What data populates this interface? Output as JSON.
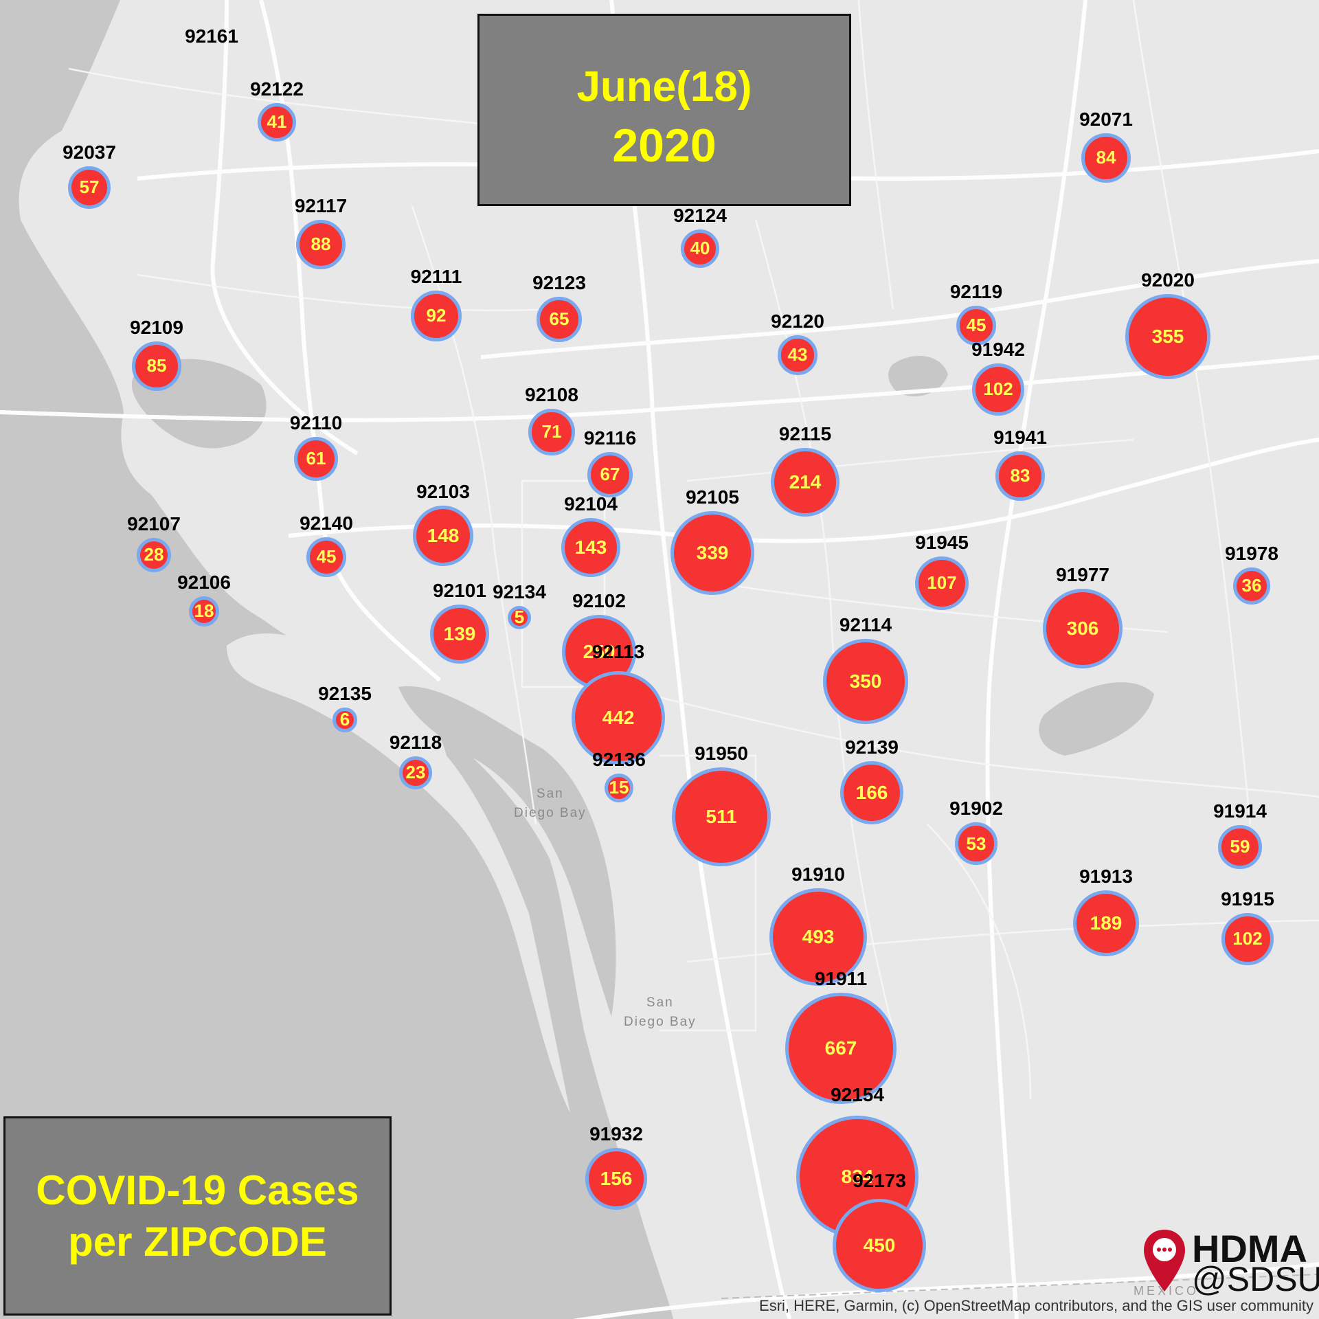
{
  "title": {
    "line1": "June(18)",
    "line2": "2020"
  },
  "legend_title": {
    "line1": "COVID-19 Cases",
    "line2": "per ZIPCODE"
  },
  "attribution": "Esri, HERE, Garmin, (c) OpenStreetMap contributors, and the GIS user community",
  "logo": {
    "line1": "HDMA",
    "line2": "@SDSU"
  },
  "water_labels": [
    {
      "text": "San\nDiego Bay"
    },
    {
      "text": "San\nDiego Bay"
    }
  ],
  "basemap_text": "MEXICO",
  "colors": {
    "bubble_fill": "#f53333",
    "bubble_stroke": "#7aa8ee",
    "bubble_text": "#ffff55",
    "title_text": "#ffff00",
    "box_fill": "#808080",
    "logo_pin": "#c8102e"
  },
  "zip_cases": [
    {
      "zip": "92161",
      "cases": null
    },
    {
      "zip": "92122",
      "cases": 41
    },
    {
      "zip": "92037",
      "cases": 57
    },
    {
      "zip": "92117",
      "cases": 88
    },
    {
      "zip": "92111",
      "cases": 92
    },
    {
      "zip": "92123",
      "cases": 65
    },
    {
      "zip": "92124",
      "cases": 40
    },
    {
      "zip": "92071",
      "cases": 84
    },
    {
      "zip": "92109",
      "cases": 85
    },
    {
      "zip": "92119",
      "cases": 45
    },
    {
      "zip": "92020",
      "cases": 355
    },
    {
      "zip": "92120",
      "cases": 43
    },
    {
      "zip": "91942",
      "cases": 102
    },
    {
      "zip": "92108",
      "cases": 71
    },
    {
      "zip": "92110",
      "cases": 61
    },
    {
      "zip": "92116",
      "cases": 67
    },
    {
      "zip": "92115",
      "cases": 214
    },
    {
      "zip": "91941",
      "cases": 83
    },
    {
      "zip": "92103",
      "cases": 148
    },
    {
      "zip": "92104",
      "cases": 143
    },
    {
      "zip": "92105",
      "cases": 339
    },
    {
      "zip": "92107",
      "cases": 28
    },
    {
      "zip": "92140",
      "cases": 45
    },
    {
      "zip": "91945",
      "cases": 107
    },
    {
      "zip": "91978",
      "cases": 36
    },
    {
      "zip": "92106",
      "cases": 18
    },
    {
      "zip": "92101",
      "cases": 139
    },
    {
      "zip": "92134",
      "cases": 5
    },
    {
      "zip": "92102",
      "cases": 250
    },
    {
      "zip": "91977",
      "cases": 306
    },
    {
      "zip": "92114",
      "cases": 350
    },
    {
      "zip": "92113",
      "cases": 442
    },
    {
      "zip": "92135",
      "cases": 6
    },
    {
      "zip": "92118",
      "cases": 23
    },
    {
      "zip": "92136",
      "cases": 15
    },
    {
      "zip": "91950",
      "cases": 511
    },
    {
      "zip": "92139",
      "cases": 166
    },
    {
      "zip": "91902",
      "cases": 53
    },
    {
      "zip": "91914",
      "cases": 59
    },
    {
      "zip": "91910",
      "cases": 493
    },
    {
      "zip": "91913",
      "cases": 189
    },
    {
      "zip": "91915",
      "cases": 102
    },
    {
      "zip": "91911",
      "cases": 667
    },
    {
      "zip": "92154",
      "cases": 834
    },
    {
      "zip": "91932",
      "cases": 156
    },
    {
      "zip": "92173",
      "cases": 450
    }
  ]
}
